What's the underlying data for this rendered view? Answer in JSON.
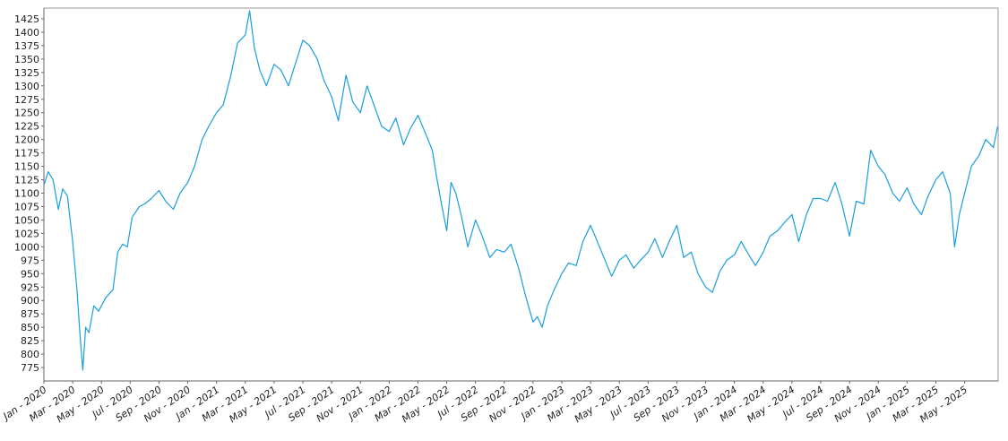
{
  "chart_data": {
    "type": "line",
    "title": "",
    "xlabel": "",
    "ylabel": "",
    "grid": false,
    "legend": "none",
    "ylim": [
      750,
      1445
    ],
    "yticks": [
      775,
      800,
      825,
      850,
      875,
      900,
      925,
      950,
      975,
      1000,
      1025,
      1050,
      1075,
      1100,
      1125,
      1150,
      1175,
      1200,
      1225,
      1250,
      1275,
      1300,
      1325,
      1350,
      1375,
      1400,
      1425
    ],
    "x_range": [
      "2020-01",
      "2025-07"
    ],
    "xtick_labels": [
      "Jan - 2020",
      "Mar - 2020",
      "May - 2020",
      "Jul - 2020",
      "Sep - 2020",
      "Nov - 2020",
      "Jan - 2021",
      "Mar - 2021",
      "May - 2021",
      "Jul - 2021",
      "Sep - 2021",
      "Nov - 2021",
      "Jan - 2022",
      "Mar - 2022",
      "May - 2022",
      "Jul - 2022",
      "Sep - 2022",
      "Nov - 2022",
      "Jan - 2023",
      "Mar - 2023",
      "May - 2023",
      "Jul - 2023",
      "Sep - 2023",
      "Nov - 2023",
      "Jan - 2024",
      "Mar - 2024",
      "May - 2024",
      "Jul - 2024",
      "Sep - 2024",
      "Nov - 2024",
      "Jan - 2025",
      "Mar - 2025",
      "May - 2025"
    ],
    "line_color": "#1a9ee0",
    "series": [
      {
        "points": [
          [
            "2020-01-01",
            1115
          ],
          [
            "2020-01-10",
            1140
          ],
          [
            "2020-01-20",
            1125
          ],
          [
            "2020-02-01",
            1070
          ],
          [
            "2020-02-10",
            1108
          ],
          [
            "2020-02-20",
            1095
          ],
          [
            "2020-03-01",
            1010
          ],
          [
            "2020-03-10",
            920
          ],
          [
            "2020-03-16",
            840
          ],
          [
            "2020-03-22",
            770
          ],
          [
            "2020-03-28",
            850
          ],
          [
            "2020-04-05",
            840
          ],
          [
            "2020-04-15",
            890
          ],
          [
            "2020-04-25",
            880
          ],
          [
            "2020-05-10",
            905
          ],
          [
            "2020-05-25",
            920
          ],
          [
            "2020-06-05",
            990
          ],
          [
            "2020-06-15",
            1005
          ],
          [
            "2020-06-25",
            1000
          ],
          [
            "2020-07-05",
            1055
          ],
          [
            "2020-07-20",
            1075
          ],
          [
            "2020-08-01",
            1080
          ],
          [
            "2020-08-15",
            1090
          ],
          [
            "2020-09-01",
            1105
          ],
          [
            "2020-09-15",
            1085
          ],
          [
            "2020-10-01",
            1070
          ],
          [
            "2020-10-15",
            1100
          ],
          [
            "2020-11-01",
            1120
          ],
          [
            "2020-11-15",
            1150
          ],
          [
            "2020-12-01",
            1200
          ],
          [
            "2020-12-15",
            1225
          ],
          [
            "2021-01-01",
            1250
          ],
          [
            "2021-01-15",
            1265
          ],
          [
            "2021-02-01",
            1320
          ],
          [
            "2021-02-15",
            1380
          ],
          [
            "2021-03-01",
            1395
          ],
          [
            "2021-03-10",
            1440
          ],
          [
            "2021-03-20",
            1370
          ],
          [
            "2021-04-01",
            1330
          ],
          [
            "2021-04-15",
            1300
          ],
          [
            "2021-05-01",
            1340
          ],
          [
            "2021-05-15",
            1330
          ],
          [
            "2021-06-01",
            1300
          ],
          [
            "2021-06-15",
            1340
          ],
          [
            "2021-07-01",
            1385
          ],
          [
            "2021-07-15",
            1375
          ],
          [
            "2021-08-01",
            1350
          ],
          [
            "2021-08-15",
            1310
          ],
          [
            "2021-09-01",
            1280
          ],
          [
            "2021-09-15",
            1235
          ],
          [
            "2021-10-01",
            1320
          ],
          [
            "2021-10-15",
            1270
          ],
          [
            "2021-11-01",
            1250
          ],
          [
            "2021-11-15",
            1300
          ],
          [
            "2021-12-01",
            1260
          ],
          [
            "2021-12-15",
            1225
          ],
          [
            "2022-01-01",
            1215
          ],
          [
            "2022-01-15",
            1240
          ],
          [
            "2022-02-01",
            1190
          ],
          [
            "2022-02-15",
            1220
          ],
          [
            "2022-03-01",
            1245
          ],
          [
            "2022-03-15",
            1215
          ],
          [
            "2022-04-01",
            1180
          ],
          [
            "2022-04-10",
            1130
          ],
          [
            "2022-04-20",
            1080
          ],
          [
            "2022-05-01",
            1030
          ],
          [
            "2022-05-10",
            1120
          ],
          [
            "2022-05-20",
            1100
          ],
          [
            "2022-06-01",
            1060
          ],
          [
            "2022-06-15",
            1000
          ],
          [
            "2022-07-01",
            1050
          ],
          [
            "2022-07-15",
            1020
          ],
          [
            "2022-08-01",
            980
          ],
          [
            "2022-08-15",
            995
          ],
          [
            "2022-09-01",
            990
          ],
          [
            "2022-09-15",
            1005
          ],
          [
            "2022-10-01",
            960
          ],
          [
            "2022-10-15",
            910
          ],
          [
            "2022-11-01",
            860
          ],
          [
            "2022-11-10",
            870
          ],
          [
            "2022-11-20",
            850
          ],
          [
            "2022-12-01",
            890
          ],
          [
            "2022-12-15",
            920
          ],
          [
            "2023-01-01",
            950
          ],
          [
            "2023-01-15",
            970
          ],
          [
            "2023-02-01",
            965
          ],
          [
            "2023-02-15",
            1010
          ],
          [
            "2023-03-01",
            1040
          ],
          [
            "2023-03-15",
            1010
          ],
          [
            "2023-04-01",
            975
          ],
          [
            "2023-04-15",
            945
          ],
          [
            "2023-05-01",
            975
          ],
          [
            "2023-05-15",
            985
          ],
          [
            "2023-06-01",
            960
          ],
          [
            "2023-06-15",
            975
          ],
          [
            "2023-07-01",
            990
          ],
          [
            "2023-07-15",
            1015
          ],
          [
            "2023-08-01",
            980
          ],
          [
            "2023-08-15",
            1010
          ],
          [
            "2023-09-01",
            1040
          ],
          [
            "2023-09-15",
            980
          ],
          [
            "2023-10-01",
            990
          ],
          [
            "2023-10-15",
            950
          ],
          [
            "2023-11-01",
            925
          ],
          [
            "2023-11-15",
            915
          ],
          [
            "2023-12-01",
            955
          ],
          [
            "2023-12-15",
            975
          ],
          [
            "2024-01-01",
            985
          ],
          [
            "2024-01-15",
            1010
          ],
          [
            "2024-02-01",
            985
          ],
          [
            "2024-02-15",
            965
          ],
          [
            "2024-03-01",
            990
          ],
          [
            "2024-03-15",
            1020
          ],
          [
            "2024-04-01",
            1030
          ],
          [
            "2024-04-15",
            1045
          ],
          [
            "2024-05-01",
            1060
          ],
          [
            "2024-05-15",
            1010
          ],
          [
            "2024-06-01",
            1060
          ],
          [
            "2024-06-15",
            1090
          ],
          [
            "2024-07-01",
            1090
          ],
          [
            "2024-07-15",
            1085
          ],
          [
            "2024-08-01",
            1120
          ],
          [
            "2024-08-15",
            1080
          ],
          [
            "2024-09-01",
            1020
          ],
          [
            "2024-09-15",
            1085
          ],
          [
            "2024-10-01",
            1080
          ],
          [
            "2024-10-15",
            1180
          ],
          [
            "2024-11-01",
            1150
          ],
          [
            "2024-11-15",
            1135
          ],
          [
            "2024-12-01",
            1100
          ],
          [
            "2024-12-15",
            1085
          ],
          [
            "2025-01-01",
            1110
          ],
          [
            "2025-01-15",
            1080
          ],
          [
            "2025-02-01",
            1060
          ],
          [
            "2025-02-15",
            1095
          ],
          [
            "2025-03-01",
            1125
          ],
          [
            "2025-03-15",
            1140
          ],
          [
            "2025-04-01",
            1100
          ],
          [
            "2025-04-10",
            1000
          ],
          [
            "2025-04-20",
            1060
          ],
          [
            "2025-05-01",
            1100
          ],
          [
            "2025-05-15",
            1150
          ],
          [
            "2025-06-01",
            1170
          ],
          [
            "2025-06-15",
            1200
          ],
          [
            "2025-07-01",
            1185
          ],
          [
            "2025-07-10",
            1225
          ]
        ]
      }
    ]
  }
}
